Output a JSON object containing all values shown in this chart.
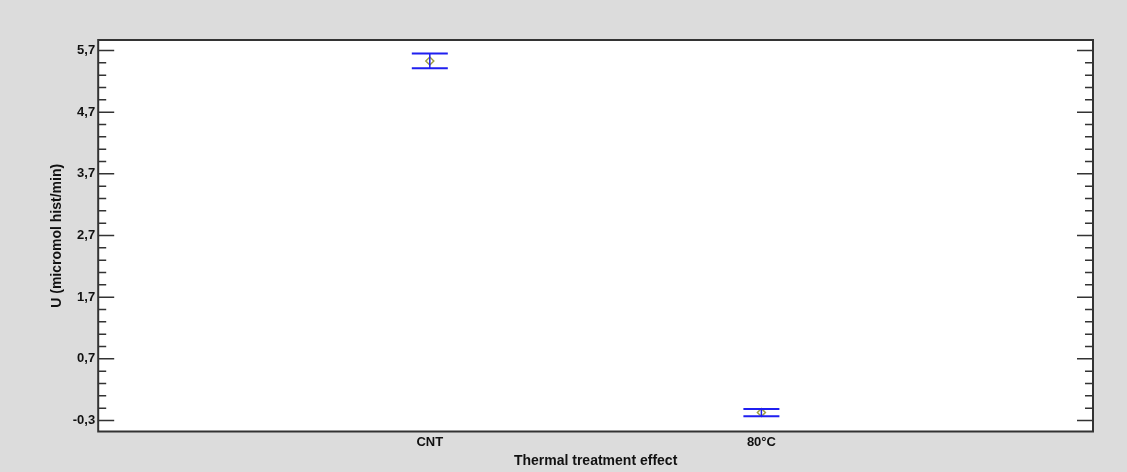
{
  "chart_data": {
    "type": "scatter",
    "xlabel": "Thermal treatment effect",
    "ylabel": "U (micromol hist/min)",
    "categories": [
      "CNT",
      "80°C"
    ],
    "color": "#a0a040",
    "values": [
      5.53,
      -0.17
    ],
    "errors": [
      [
        5.41,
        5.65
      ],
      [
        -0.23,
        -0.115
      ]
    ],
    "marker": "diamond",
    "ylim": [
      -0.48,
      5.87
    ],
    "yticks": [
      {
        "value": -0.3,
        "label": "-0,3"
      },
      {
        "value": -0.1,
        "label": null
      },
      {
        "value": 0.1,
        "label": null
      },
      {
        "value": 0.3,
        "label": null
      },
      {
        "value": 0.5,
        "label": null
      },
      {
        "value": 0.7,
        "label": "0,7"
      },
      {
        "value": 0.9,
        "label": null
      },
      {
        "value": 1.1,
        "label": null
      },
      {
        "value": 1.3,
        "label": null
      },
      {
        "value": 1.5,
        "label": null
      },
      {
        "value": 1.7,
        "label": "1,7"
      },
      {
        "value": 1.9,
        "label": null
      },
      {
        "value": 2.1,
        "label": null
      },
      {
        "value": 2.3,
        "label": null
      },
      {
        "value": 2.5,
        "label": null
      },
      {
        "value": 2.7,
        "label": "2,7"
      },
      {
        "value": 2.9,
        "label": null
      },
      {
        "value": 3.1,
        "label": null
      },
      {
        "value": 3.3,
        "label": null
      },
      {
        "value": 3.5,
        "label": null
      },
      {
        "value": 3.7,
        "label": "3,7"
      },
      {
        "value": 3.9,
        "label": null
      },
      {
        "value": 4.1,
        "label": null
      },
      {
        "value": 4.3,
        "label": null
      },
      {
        "value": 4.5,
        "label": null
      },
      {
        "value": 4.7,
        "label": "4,7"
      },
      {
        "value": 4.9,
        "label": null
      },
      {
        "value": 5.1,
        "label": null
      },
      {
        "value": 5.3,
        "label": null
      },
      {
        "value": 5.5,
        "label": null
      },
      {
        "value": 5.7,
        "label": "5,7"
      }
    ],
    "grid": false,
    "legend": false
  }
}
